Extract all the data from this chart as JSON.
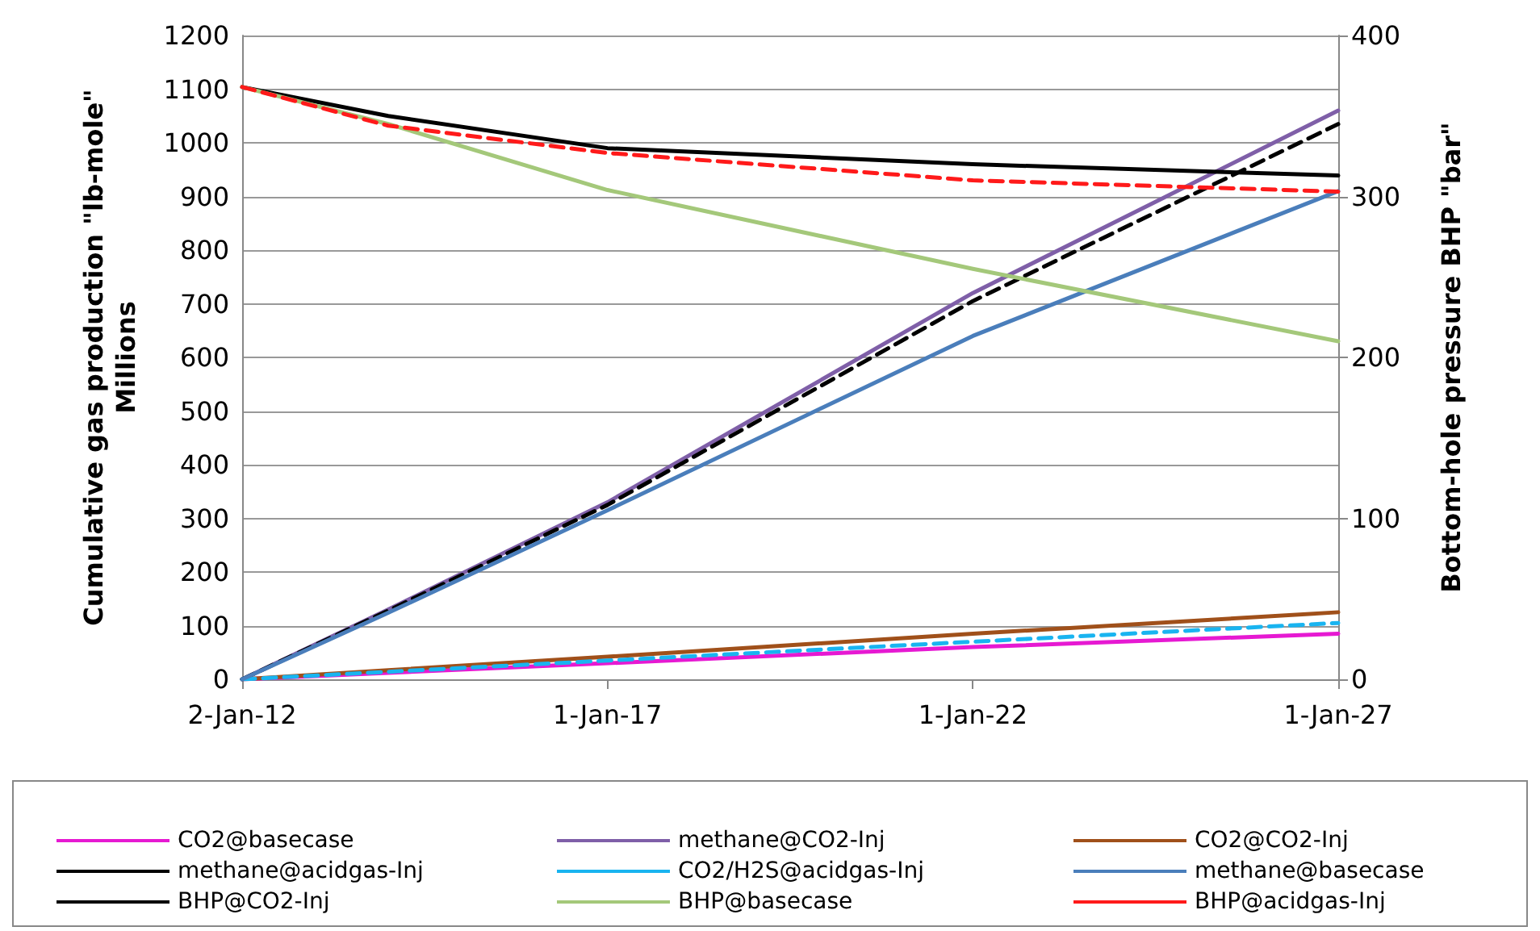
{
  "chart_data": {
    "type": "line",
    "ylabel": "Cumulative gas production \"lb-mole\"\nMillions",
    "y2label": "Bottom-hole pressure BHP \"bar\"",
    "x": [
      "2012-01-02",
      "2014-01-01",
      "2017-01-01",
      "2022-01-01",
      "2027-01-01"
    ],
    "xlim": [
      "2012-01-02",
      "2027-01-01"
    ],
    "xticks": [
      {
        "value": "2012-01-02",
        "label": "2-Jan-12"
      },
      {
        "value": "2017-01-01",
        "label": "1-Jan-17"
      },
      {
        "value": "2022-01-01",
        "label": "1-Jan-22"
      },
      {
        "value": "2027-01-01",
        "label": "1-Jan-27"
      }
    ],
    "ylim": [
      0,
      1200
    ],
    "yticks": [
      0,
      100,
      200,
      300,
      400,
      500,
      600,
      700,
      800,
      900,
      1000,
      1100,
      1200
    ],
    "y2lim": [
      0,
      400
    ],
    "y2ticks": [
      0,
      100,
      200,
      300,
      400
    ],
    "series": [
      {
        "name": "CO2@basecase",
        "color": "#e619d2",
        "values": [
          0,
          12,
          30,
          60,
          85
        ]
      },
      {
        "name": "methane@CO2-Inj",
        "color": "#7f5fa8",
        "values": [
          0,
          130,
          330,
          720,
          1060
        ]
      },
      {
        "name": "CO2@CO2-Inj",
        "color": "#a0501a",
        "values": [
          0,
          17,
          42,
          85,
          125
        ]
      },
      {
        "name": "methane@acidgas-Inj",
        "color": "#000000",
        "line_style": "dashed",
        "values": [
          0,
          128,
          325,
          705,
          1035
        ]
      },
      {
        "name": "CO2/H2S@acidgas-Inj",
        "color": "#19b4f0",
        "line_style": "dashed",
        "values": [
          0,
          14,
          35,
          70,
          105
        ]
      },
      {
        "name": "methane@basecase",
        "color": "#4a7ebb",
        "values": [
          0,
          124,
          315,
          640,
          910
        ]
      },
      {
        "name": "BHP@CO2-Inj",
        "color": "#000000",
        "axis": "y2",
        "values": [
          368,
          350,
          330,
          320,
          313
        ]
      },
      {
        "name": "BHP@basecase",
        "color": "#a4c87a",
        "axis": "y2",
        "values": [
          368,
          345,
          304,
          255,
          210
        ]
      },
      {
        "name": "BHP@acidgas-Inj",
        "color": "#ff1a1a",
        "axis": "y2",
        "line_style": "dashed",
        "values": [
          368,
          344,
          327,
          310,
          303
        ]
      }
    ],
    "grid": "y",
    "legend": "bottom",
    "marker": "none"
  }
}
